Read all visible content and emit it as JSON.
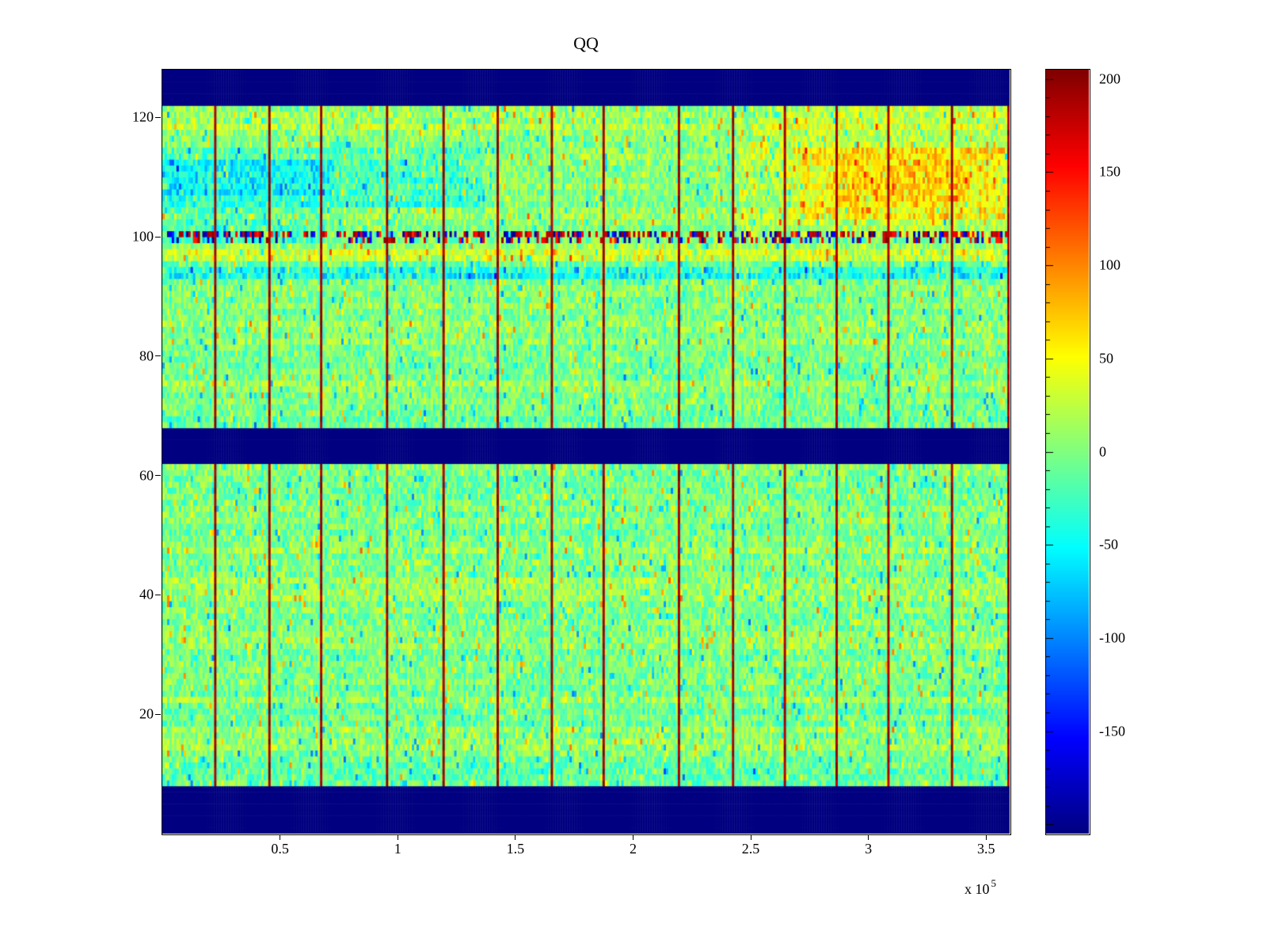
{
  "figure": {
    "title": "QQ",
    "background_color": "#ffffff"
  },
  "chart_data": {
    "type": "heatmap",
    "title": "QQ",
    "colormap": "jet",
    "x_axis": {
      "range": [
        0,
        360000
      ],
      "ticks": [
        50000,
        100000,
        150000,
        200000,
        250000,
        300000,
        350000
      ],
      "tick_labels": [
        "0.5",
        "1",
        "1.5",
        "2",
        "2.5",
        "3",
        "3.5"
      ],
      "exponent_prefix": "x 10",
      "exponent": "5"
    },
    "y_axis": {
      "range": [
        0,
        128
      ],
      "ticks": [
        20,
        40,
        60,
        80,
        100,
        120
      ],
      "tick_labels": [
        "20",
        "40",
        "60",
        "80",
        "100",
        "120"
      ]
    },
    "colorbar": {
      "colormap": "jet",
      "range": [
        -205,
        205
      ],
      "ticks": [
        200,
        150,
        100,
        50,
        0,
        -50,
        -100,
        -150
      ],
      "tick_labels": [
        "200",
        "150",
        "100",
        "50",
        "0",
        "-50",
        "-100",
        "-150"
      ],
      "minor_tick_step": 10
    },
    "grid": {
      "rows": 128,
      "cols": 360
    },
    "background_value": -205,
    "bands": [
      {
        "name": "top-blank-band",
        "rows": [
          122,
          127
        ],
        "value": -205
      },
      {
        "name": "middle-blank-band",
        "rows": [
          62,
          67
        ],
        "value": -205
      },
      {
        "name": "bottom-blank-band",
        "rows": [
          0,
          7
        ],
        "value": -205
      }
    ],
    "vertical_lines": {
      "x_values": [
        22000,
        45000,
        67000,
        95000,
        119000,
        142000,
        164500,
        187000,
        219000,
        242000,
        264000,
        286000,
        308000,
        335000,
        359000
      ],
      "value": 192
    },
    "special_rows": [
      {
        "row": 100,
        "type": "extreme-speckle",
        "prob": 0.55,
        "positive_bias": 0.6
      },
      {
        "row": 99,
        "type": "extreme-speckle",
        "prob": 0.3,
        "positive_bias": 0.5
      }
    ],
    "patches": [
      {
        "name": "upper-left-blue-wide",
        "rows": [
          105,
          114
        ],
        "cols": [
          0,
          135
        ],
        "offset": -26
      },
      {
        "name": "upper-left-blue-strong",
        "rows": [
          107,
          112
        ],
        "cols": [
          0,
          72
        ],
        "offset": -30
      },
      {
        "name": "left-blue-low-band",
        "rows": [
          99,
          104
        ],
        "cols": [
          0,
          68
        ],
        "offset": -22
      },
      {
        "name": "upper-right-orange-wide",
        "rows": [
          100,
          115
        ],
        "cols": [
          245,
          360
        ],
        "offset": 18
      },
      {
        "name": "upper-right-orange",
        "rows": [
          103,
          114
        ],
        "cols": [
          268,
          357
        ],
        "offset": 26
      },
      {
        "name": "upper-right-orange-core",
        "rows": [
          105,
          112
        ],
        "cols": [
          283,
          342
        ],
        "offset": 22
      },
      {
        "name": "upper-right-top-warm",
        "rows": [
          114,
          121
        ],
        "cols": [
          250,
          360
        ],
        "offset": 14
      },
      {
        "name": "yellow-rows-below-speckle",
        "rows": [
          96,
          97
        ],
        "cols": [
          0,
          360
        ],
        "offset": 24
      },
      {
        "name": "cyan-rows",
        "rows": [
          93,
          94
        ],
        "cols": [
          0,
          360
        ],
        "offset": -42
      },
      {
        "name": "cyan-row-light",
        "rows": [
          95,
          95
        ],
        "cols": [
          0,
          360
        ],
        "offset": -14
      },
      {
        "name": "top-yellow-rows",
        "rows": [
          118,
          121
        ],
        "cols": [
          0,
          360
        ],
        "offset": 12
      },
      {
        "name": "above-mid-cyan",
        "rows": [
          68,
          70
        ],
        "cols": [
          0,
          360
        ],
        "offset": -14
      },
      {
        "name": "lower-cyan-20",
        "rows": [
          18,
          21
        ],
        "cols": [
          0,
          360
        ],
        "offset": -12
      },
      {
        "name": "lower-cyan-36",
        "rows": [
          35,
          37
        ],
        "cols": [
          0,
          360
        ],
        "offset": -9
      },
      {
        "name": "lower-bottom-cyan",
        "rows": [
          8,
          11
        ],
        "cols": [
          0,
          360
        ],
        "offset": -10
      }
    ],
    "noise": {
      "mean": 2,
      "amplitude": 32,
      "row_variation": 22,
      "speckle_prob": 0.1,
      "seed": 20
    }
  }
}
